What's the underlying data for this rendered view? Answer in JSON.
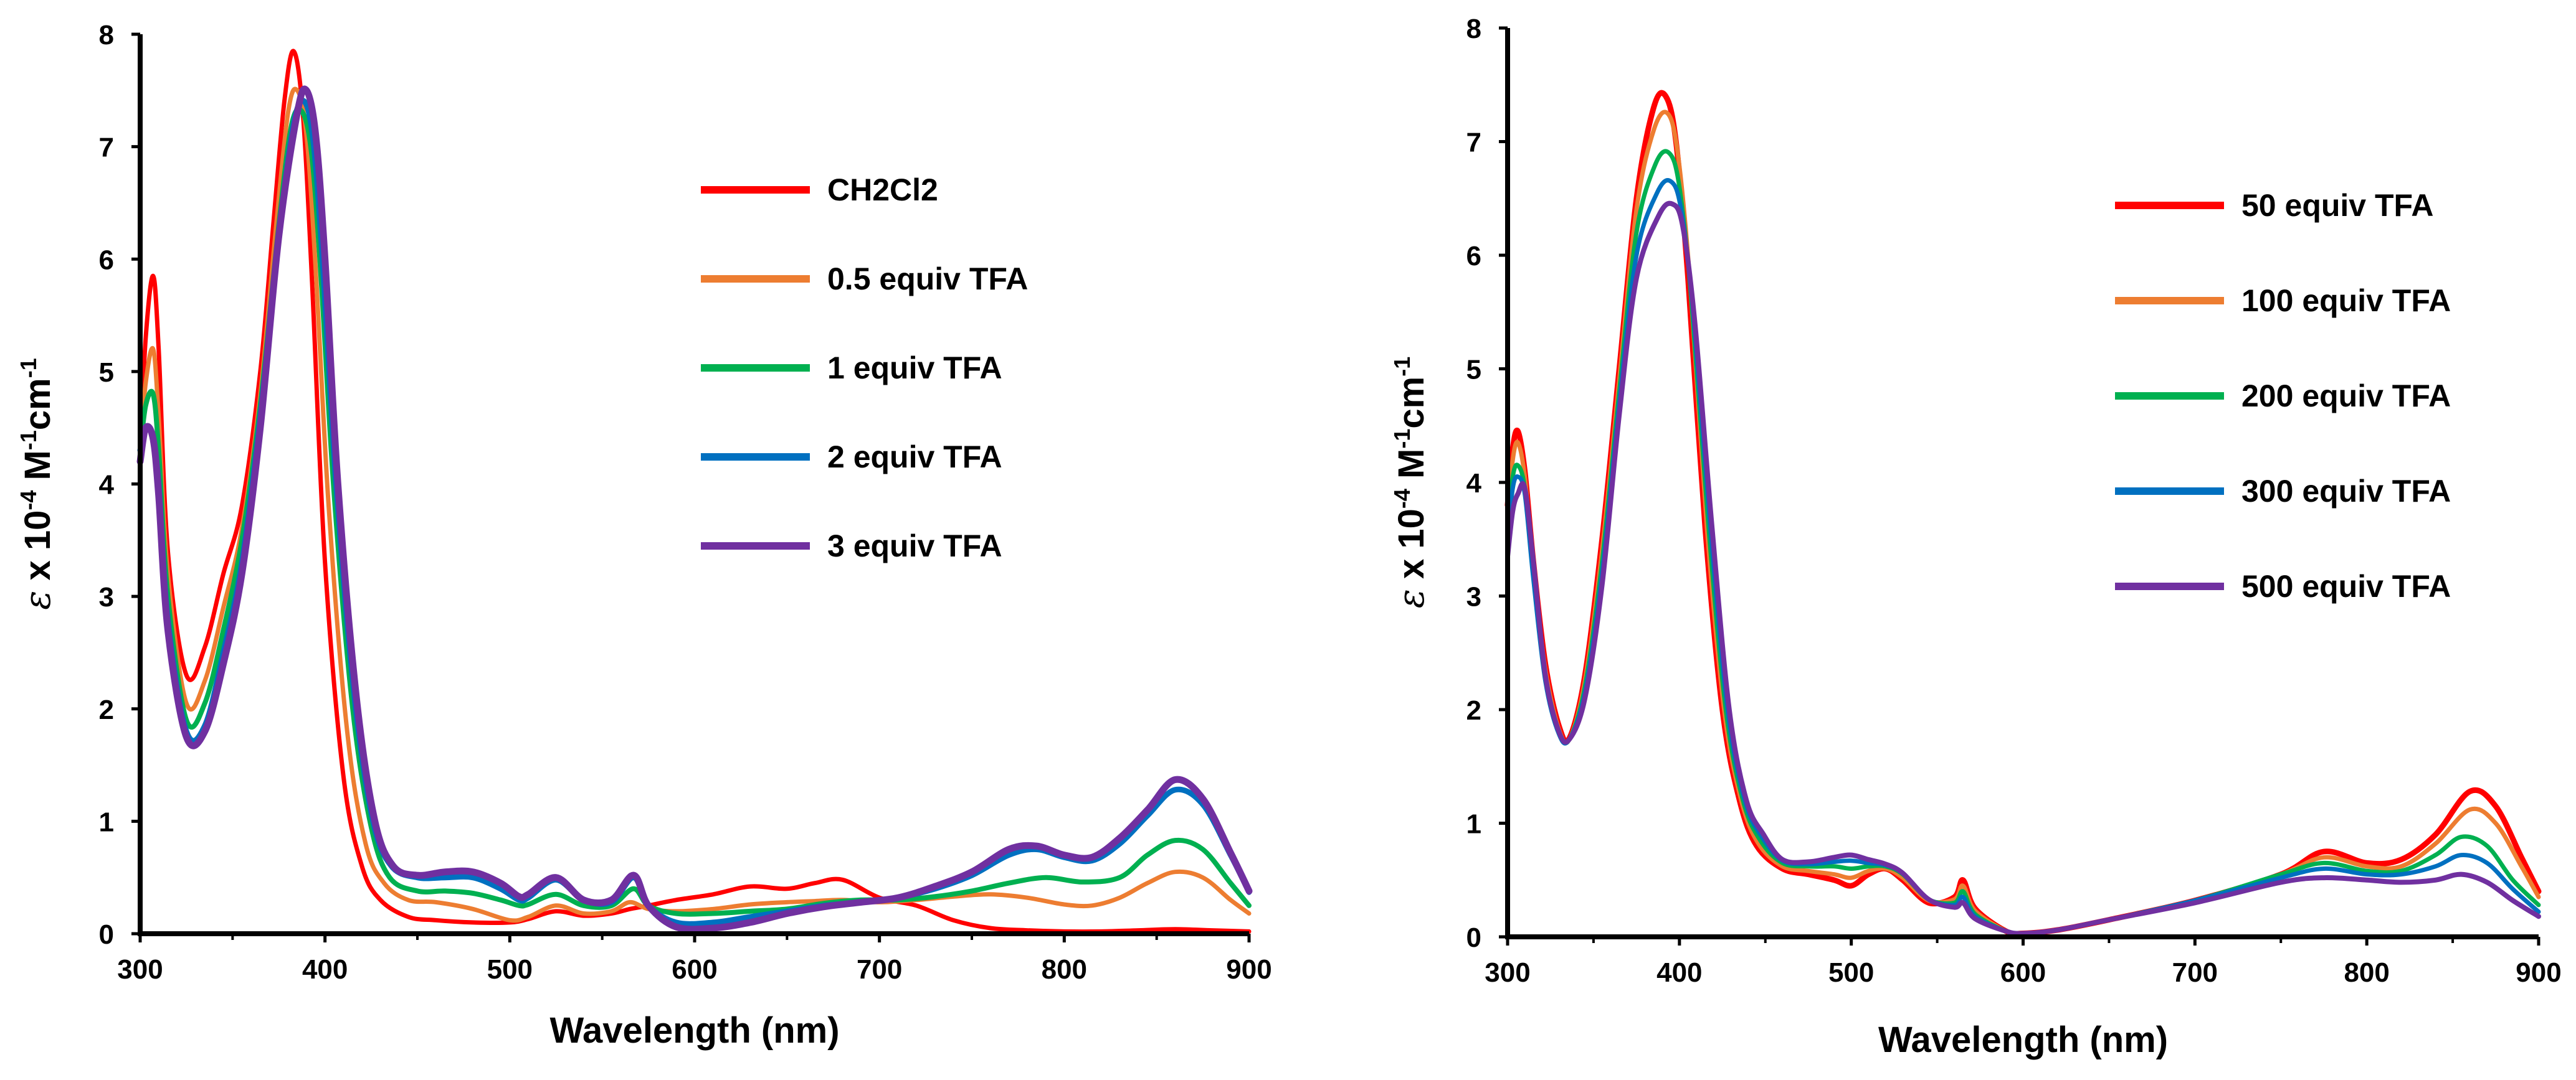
{
  "chart_data": [
    {
      "type": "line",
      "title": "",
      "xlabel": "Wavelength (nm)",
      "ylabel_parts": [
        "ε",
        " x 10",
        "-4",
        " M",
        "-1",
        "cm",
        "-1"
      ],
      "xlim": [
        300,
        900
      ],
      "ylim": [
        0,
        8
      ],
      "xticks": [
        "300",
        "400",
        "500",
        "600",
        "700",
        "800",
        "900"
      ],
      "yticks": [
        "0",
        "1",
        "2",
        "3",
        "4",
        "5",
        "6",
        "7",
        "8"
      ],
      "legend_position": "upper-right inside",
      "series": [
        {
          "name": "CH2Cl2",
          "color": "#ff0000",
          "x": [
            300,
            303,
            307,
            310,
            315,
            325,
            335,
            345,
            355,
            365,
            372,
            378,
            383,
            388,
            393,
            400,
            410,
            420,
            430,
            445,
            460,
            480,
            500,
            510,
            525,
            540,
            555,
            565,
            575,
            590,
            610,
            630,
            650,
            665,
            680,
            700,
            720,
            740,
            760,
            780,
            800,
            820,
            840,
            860,
            880,
            900
          ],
          "y": [
            4.3,
            5.3,
            5.85,
            5.2,
            3.4,
            2.3,
            2.55,
            3.2,
            3.8,
            5.0,
            6.3,
            7.4,
            7.85,
            7.3,
            5.8,
            3.3,
            1.4,
            0.6,
            0.3,
            0.15,
            0.12,
            0.1,
            0.1,
            0.13,
            0.2,
            0.16,
            0.18,
            0.22,
            0.25,
            0.3,
            0.35,
            0.42,
            0.4,
            0.45,
            0.48,
            0.32,
            0.25,
            0.12,
            0.05,
            0.03,
            0.02,
            0.02,
            0.03,
            0.04,
            0.03,
            0.02
          ]
        },
        {
          "name": "0.5 equiv TFA",
          "color": "#ed7d31",
          "x": [
            300,
            303,
            307,
            310,
            315,
            325,
            335,
            345,
            355,
            365,
            373,
            380,
            385,
            390,
            395,
            402,
            412,
            422,
            432,
            445,
            460,
            480,
            500,
            510,
            525,
            540,
            555,
            565,
            575,
            590,
            610,
            630,
            650,
            665,
            680,
            700,
            720,
            740,
            760,
            780,
            800,
            815,
            830,
            845,
            860,
            875,
            890,
            900
          ],
          "y": [
            4.3,
            4.9,
            5.2,
            4.6,
            3.2,
            2.05,
            2.25,
            2.9,
            3.6,
            4.8,
            6.2,
            7.3,
            7.5,
            7.1,
            5.9,
            3.8,
            1.8,
            0.8,
            0.45,
            0.3,
            0.28,
            0.22,
            0.12,
            0.15,
            0.25,
            0.18,
            0.2,
            0.28,
            0.22,
            0.2,
            0.22,
            0.26,
            0.28,
            0.29,
            0.3,
            0.28,
            0.3,
            0.33,
            0.35,
            0.32,
            0.26,
            0.25,
            0.32,
            0.45,
            0.55,
            0.5,
            0.3,
            0.18
          ]
        },
        {
          "name": "1 equiv TFA",
          "color": "#00b050",
          "x": [
            300,
            303,
            307,
            310,
            315,
            325,
            335,
            345,
            355,
            365,
            375,
            382,
            388,
            393,
            398,
            405,
            415,
            425,
            435,
            450,
            465,
            480,
            495,
            505,
            510,
            525,
            540,
            555,
            567,
            575,
            590,
            610,
            630,
            650,
            670,
            690,
            710,
            730,
            750,
            770,
            790,
            810,
            830,
            845,
            860,
            875,
            890,
            900
          ],
          "y": [
            4.3,
            4.7,
            4.8,
            4.3,
            3.0,
            1.9,
            2.05,
            2.7,
            3.5,
            4.7,
            6.3,
            7.2,
            7.3,
            6.9,
            5.8,
            3.9,
            2.0,
            0.95,
            0.5,
            0.38,
            0.38,
            0.36,
            0.3,
            0.25,
            0.26,
            0.35,
            0.25,
            0.25,
            0.4,
            0.25,
            0.18,
            0.18,
            0.2,
            0.22,
            0.27,
            0.3,
            0.3,
            0.33,
            0.38,
            0.45,
            0.5,
            0.46,
            0.5,
            0.7,
            0.83,
            0.75,
            0.45,
            0.25
          ]
        },
        {
          "name": "2 equiv TFA",
          "color": "#0070c0",
          "x": [
            300,
            303,
            307,
            310,
            315,
            325,
            335,
            345,
            355,
            365,
            375,
            383,
            389,
            394,
            399,
            406,
            416,
            426,
            436,
            450,
            465,
            480,
            495,
            505,
            510,
            525,
            540,
            555,
            567,
            575,
            590,
            610,
            630,
            650,
            670,
            690,
            710,
            730,
            750,
            770,
            785,
            800,
            815,
            830,
            845,
            860,
            875,
            890,
            900
          ],
          "y": [
            4.3,
            4.5,
            4.4,
            4.0,
            2.8,
            1.8,
            1.85,
            2.5,
            3.3,
            4.6,
            6.2,
            7.2,
            7.4,
            7.0,
            5.9,
            4.0,
            2.1,
            1.0,
            0.6,
            0.5,
            0.5,
            0.5,
            0.4,
            0.3,
            0.32,
            0.48,
            0.3,
            0.28,
            0.5,
            0.25,
            0.1,
            0.1,
            0.15,
            0.2,
            0.25,
            0.28,
            0.32,
            0.4,
            0.52,
            0.7,
            0.75,
            0.68,
            0.65,
            0.8,
            1.05,
            1.28,
            1.15,
            0.7,
            0.37
          ]
        },
        {
          "name": "3 equiv TFA",
          "color": "#7030a0",
          "x": [
            300,
            303,
            307,
            310,
            315,
            325,
            335,
            345,
            355,
            365,
            375,
            385,
            390,
            395,
            400,
            407,
            417,
            427,
            437,
            450,
            465,
            480,
            495,
            505,
            510,
            525,
            540,
            555,
            567,
            575,
            590,
            610,
            630,
            650,
            670,
            690,
            710,
            730,
            750,
            770,
            785,
            800,
            815,
            830,
            845,
            860,
            875,
            890,
            900
          ],
          "y": [
            4.2,
            4.5,
            4.4,
            3.9,
            2.7,
            1.75,
            1.8,
            2.4,
            3.2,
            4.5,
            6.2,
            7.3,
            7.5,
            7.1,
            6.0,
            4.0,
            2.1,
            1.0,
            0.6,
            0.52,
            0.55,
            0.55,
            0.45,
            0.33,
            0.35,
            0.5,
            0.3,
            0.3,
            0.52,
            0.25,
            0.06,
            0.05,
            0.1,
            0.18,
            0.24,
            0.28,
            0.32,
            0.42,
            0.55,
            0.75,
            0.78,
            0.7,
            0.68,
            0.85,
            1.1,
            1.37,
            1.2,
            0.72,
            0.38
          ]
        }
      ]
    },
    {
      "type": "line",
      "title": "",
      "xlabel": "Wavelength (nm)",
      "ylabel_parts": [
        "ε",
        " x 10",
        "-4",
        " M",
        "-1",
        "cm",
        "-1"
      ],
      "xlim": [
        300,
        900
      ],
      "ylim": [
        0,
        8
      ],
      "xticks": [
        "300",
        "400",
        "500",
        "600",
        "700",
        "800",
        "900"
      ],
      "yticks": [
        "0",
        "1",
        "2",
        "3",
        "4",
        "5",
        "6",
        "7",
        "8"
      ],
      "legend_position": "upper-right inside",
      "series": [
        {
          "name": "50 equiv TFA",
          "color": "#ff0000",
          "x": [
            300,
            303,
            306,
            310,
            315,
            322,
            330,
            336,
            345,
            355,
            365,
            375,
            385,
            392,
            398,
            405,
            415,
            425,
            435,
            445,
            460,
            475,
            490,
            500,
            510,
            520,
            530,
            545,
            560,
            565,
            572,
            590,
            600,
            620,
            650,
            700,
            750,
            775,
            800,
            820,
            840,
            860,
            875,
            890,
            900
          ],
          "y": [
            3.8,
            4.3,
            4.45,
            4.1,
            3.3,
            2.4,
            1.85,
            1.75,
            2.3,
            3.5,
            5.0,
            6.5,
            7.3,
            7.4,
            7.0,
            5.8,
            3.6,
            2.0,
            1.2,
            0.8,
            0.6,
            0.55,
            0.5,
            0.45,
            0.55,
            0.6,
            0.5,
            0.3,
            0.35,
            0.5,
            0.25,
            0.05,
            0.03,
            0.06,
            0.15,
            0.32,
            0.55,
            0.75,
            0.65,
            0.68,
            0.9,
            1.28,
            1.15,
            0.7,
            0.4
          ]
        },
        {
          "name": "100 equiv TFA",
          "color": "#ed7d31",
          "x": [
            300,
            303,
            306,
            310,
            315,
            322,
            330,
            336,
            345,
            355,
            365,
            375,
            385,
            393,
            399,
            406,
            416,
            426,
            436,
            446,
            460,
            475,
            490,
            500,
            510,
            520,
            530,
            545,
            560,
            565,
            572,
            590,
            600,
            620,
            650,
            700,
            750,
            775,
            800,
            820,
            840,
            860,
            875,
            890,
            900
          ],
          "y": [
            3.7,
            4.2,
            4.35,
            4.05,
            3.25,
            2.35,
            1.82,
            1.74,
            2.25,
            3.4,
            4.9,
            6.4,
            7.1,
            7.25,
            6.9,
            5.8,
            3.6,
            2.0,
            1.2,
            0.82,
            0.62,
            0.58,
            0.55,
            0.52,
            0.58,
            0.6,
            0.52,
            0.32,
            0.33,
            0.45,
            0.23,
            0.05,
            0.03,
            0.06,
            0.15,
            0.32,
            0.55,
            0.7,
            0.62,
            0.62,
            0.82,
            1.12,
            1.0,
            0.62,
            0.35
          ]
        },
        {
          "name": "200 equiv TFA",
          "color": "#00b050",
          "x": [
            300,
            303,
            306,
            310,
            315,
            322,
            330,
            336,
            345,
            355,
            365,
            375,
            386,
            394,
            400,
            407,
            417,
            427,
            437,
            447,
            460,
            475,
            490,
            500,
            510,
            520,
            530,
            545,
            560,
            565,
            572,
            590,
            600,
            620,
            650,
            700,
            750,
            775,
            800,
            820,
            840,
            855,
            870,
            885,
            900
          ],
          "y": [
            3.6,
            4.05,
            4.15,
            3.95,
            3.2,
            2.3,
            1.8,
            1.74,
            2.2,
            3.3,
            4.8,
            6.2,
            6.8,
            6.9,
            6.6,
            5.6,
            3.6,
            2.0,
            1.2,
            0.85,
            0.65,
            0.62,
            0.62,
            0.6,
            0.62,
            0.62,
            0.55,
            0.33,
            0.3,
            0.4,
            0.2,
            0.05,
            0.03,
            0.06,
            0.15,
            0.32,
            0.55,
            0.65,
            0.58,
            0.58,
            0.72,
            0.88,
            0.8,
            0.5,
            0.28
          ]
        },
        {
          "name": "300 equiv TFA",
          "color": "#0070c0",
          "x": [
            300,
            303,
            306,
            310,
            315,
            322,
            330,
            336,
            345,
            355,
            365,
            375,
            387,
            395,
            401,
            408,
            418,
            428,
            438,
            448,
            460,
            475,
            490,
            500,
            510,
            520,
            530,
            545,
            560,
            565,
            572,
            590,
            600,
            620,
            650,
            700,
            750,
            775,
            800,
            820,
            840,
            855,
            870,
            885,
            900
          ],
          "y": [
            3.5,
            3.95,
            4.05,
            3.9,
            3.15,
            2.25,
            1.78,
            1.74,
            2.15,
            3.2,
            4.7,
            6.0,
            6.55,
            6.65,
            6.4,
            5.5,
            3.6,
            2.0,
            1.2,
            0.88,
            0.67,
            0.64,
            0.66,
            0.67,
            0.65,
            0.63,
            0.56,
            0.33,
            0.28,
            0.35,
            0.18,
            0.05,
            0.03,
            0.06,
            0.15,
            0.32,
            0.52,
            0.6,
            0.55,
            0.55,
            0.62,
            0.72,
            0.65,
            0.42,
            0.22
          ]
        },
        {
          "name": "500 equiv TFA",
          "color": "#7030a0",
          "x": [
            300,
            303,
            306,
            310,
            315,
            322,
            330,
            336,
            345,
            355,
            365,
            375,
            388,
            396,
            402,
            409,
            419,
            429,
            439,
            449,
            460,
            475,
            490,
            500,
            510,
            520,
            530,
            545,
            560,
            565,
            572,
            590,
            600,
            620,
            650,
            700,
            750,
            775,
            800,
            820,
            840,
            855,
            870,
            885,
            900
          ],
          "y": [
            3.35,
            3.75,
            3.9,
            3.95,
            3.3,
            2.3,
            1.8,
            1.74,
            2.1,
            3.1,
            4.6,
            5.8,
            6.35,
            6.45,
            6.25,
            5.4,
            3.6,
            2.0,
            1.2,
            0.9,
            0.68,
            0.66,
            0.7,
            0.72,
            0.68,
            0.64,
            0.56,
            0.33,
            0.26,
            0.3,
            0.16,
            0.05,
            0.03,
            0.06,
            0.15,
            0.3,
            0.48,
            0.52,
            0.5,
            0.48,
            0.5,
            0.55,
            0.48,
            0.32,
            0.18
          ]
        }
      ]
    }
  ]
}
